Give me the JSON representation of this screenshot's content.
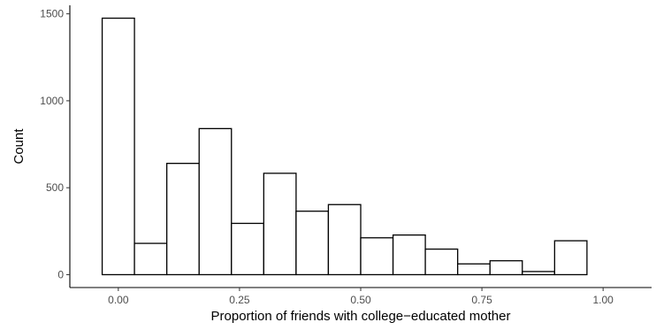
{
  "chart_data": {
    "type": "bar",
    "title": "",
    "xlabel": "Proportion of friends with college−educated mother",
    "ylabel": "Count",
    "bin_width": 0.0667,
    "bins": [
      {
        "start": -0.0333,
        "end": 0.0333,
        "value": 1475
      },
      {
        "start": 0.0333,
        "end": 0.1,
        "value": 180
      },
      {
        "start": 0.1,
        "end": 0.1667,
        "value": 640
      },
      {
        "start": 0.1667,
        "end": 0.2333,
        "value": 840
      },
      {
        "start": 0.2333,
        "end": 0.3,
        "value": 295
      },
      {
        "start": 0.3,
        "end": 0.3667,
        "value": 583
      },
      {
        "start": 0.3667,
        "end": 0.4333,
        "value": 365
      },
      {
        "start": 0.4333,
        "end": 0.5,
        "value": 403
      },
      {
        "start": 0.5,
        "end": 0.5667,
        "value": 212
      },
      {
        "start": 0.5667,
        "end": 0.6333,
        "value": 228
      },
      {
        "start": 0.6333,
        "end": 0.7,
        "value": 147
      },
      {
        "start": 0.7,
        "end": 0.7667,
        "value": 62
      },
      {
        "start": 0.7667,
        "end": 0.8333,
        "value": 80
      },
      {
        "start": 0.8333,
        "end": 0.9,
        "value": 18
      },
      {
        "start": 0.9,
        "end": 0.9667,
        "value": 195
      }
    ],
    "xticks": [
      {
        "value": 0,
        "label": "0.00"
      },
      {
        "value": 0.25,
        "label": "0.25"
      },
      {
        "value": 0.5,
        "label": "0.50"
      },
      {
        "value": 0.75,
        "label": "0.75"
      },
      {
        "value": 1,
        "label": "1.00"
      }
    ],
    "yticks": [
      {
        "value": 0,
        "label": "0"
      },
      {
        "value": 500,
        "label": "500"
      },
      {
        "value": 1000,
        "label": "1000"
      },
      {
        "value": 1500,
        "label": "1500"
      }
    ],
    "xlim": [
      -0.1,
      1.1
    ],
    "ylim": [
      -74,
      1549
    ],
    "grid": false,
    "colors": {
      "bar_fill": "#ffffff",
      "bar_stroke": "#000000"
    }
  }
}
